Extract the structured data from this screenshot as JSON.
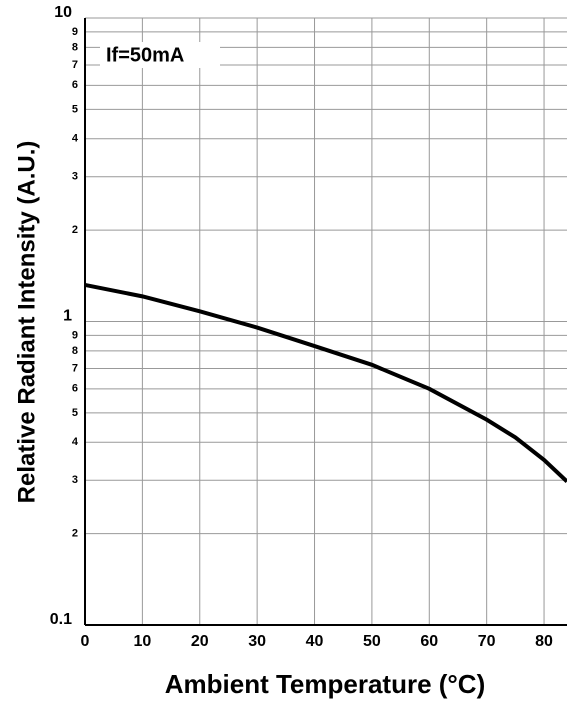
{
  "chart_data": {
    "type": "line",
    "x_label": "Ambient Temperature (°C)",
    "y_label": "Relative Radiant Intensity (A.U.)",
    "annotation": "If=50mA",
    "x": [
      0,
      10,
      20,
      30,
      40,
      50,
      60,
      70,
      75,
      80,
      84
    ],
    "series": [
      {
        "color": "#000000",
        "values": [
          1.32,
          1.21,
          1.08,
          0.955,
          0.83,
          0.72,
          0.6,
          0.475,
          0.415,
          0.35,
          0.297
        ]
      }
    ],
    "xlim": [
      0,
      84
    ],
    "xticks": [
      0,
      10,
      20,
      30,
      40,
      50,
      60,
      70,
      80
    ],
    "ylim": [
      0.1,
      10
    ],
    "yscale": "log",
    "yticks": [
      0.1,
      {
        "value": 0.2,
        "label": "2"
      },
      {
        "value": 0.3,
        "label": "3"
      },
      {
        "value": 0.4,
        "label": "4"
      },
      {
        "value": 0.5,
        "label": "5"
      },
      {
        "value": 0.6,
        "label": "6"
      },
      {
        "value": 0.7,
        "label": "7"
      },
      {
        "value": 0.8,
        "label": "8"
      },
      {
        "value": 0.9,
        "label": "9"
      },
      1,
      2,
      3,
      4,
      5,
      6,
      7,
      8,
      9,
      10
    ],
    "grid": true
  }
}
